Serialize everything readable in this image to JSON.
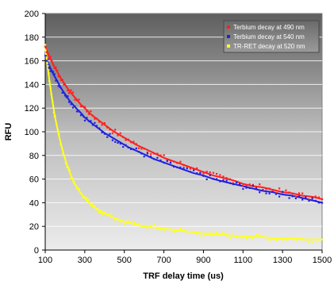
{
  "chart_data": {
    "type": "scatter",
    "title": "",
    "xlabel": "TRF delay time (us)",
    "ylabel": "RFU",
    "xlim": [
      100,
      1500
    ],
    "ylim": [
      0,
      200
    ],
    "xticks": [
      100,
      300,
      500,
      700,
      900,
      1100,
      1300,
      1500
    ],
    "yticks": [
      0,
      20,
      40,
      60,
      80,
      100,
      120,
      140,
      160,
      180,
      200
    ],
    "grid": "horizontal",
    "legend_position": "top-right",
    "background": "dark gray gradient",
    "series": [
      {
        "name": "Terbium decay at 490 nm",
        "color": "#ff2020",
        "trend": "exponential decay fit line",
        "points": [
          [
            100,
            172
          ],
          [
            110,
            168
          ],
          [
            120,
            164
          ],
          [
            140,
            157
          ],
          [
            160,
            151
          ],
          [
            180,
            145
          ],
          [
            200,
            140
          ],
          [
            220,
            135
          ],
          [
            250,
            129
          ],
          [
            280,
            123
          ],
          [
            300,
            120
          ],
          [
            330,
            115
          ],
          [
            360,
            111
          ],
          [
            400,
            106
          ],
          [
            440,
            101
          ],
          [
            480,
            97
          ],
          [
            520,
            93
          ],
          [
            560,
            89
          ],
          [
            600,
            86
          ],
          [
            650,
            82
          ],
          [
            700,
            78
          ],
          [
            750,
            75
          ],
          [
            800,
            72
          ],
          [
            850,
            69
          ],
          [
            900,
            66
          ],
          [
            950,
            63
          ],
          [
            1000,
            61
          ],
          [
            1050,
            59
          ],
          [
            1100,
            56
          ],
          [
            1150,
            54
          ],
          [
            1200,
            53
          ],
          [
            1250,
            51
          ],
          [
            1300,
            49
          ],
          [
            1350,
            48
          ],
          [
            1400,
            46
          ],
          [
            1450,
            45
          ],
          [
            1500,
            43
          ]
        ]
      },
      {
        "name": "Terbium decay at 540 nm",
        "color": "#2020e0",
        "trend": "exponential decay fit line",
        "points": [
          [
            100,
            164
          ],
          [
            110,
            160
          ],
          [
            120,
            156
          ],
          [
            140,
            149
          ],
          [
            160,
            143
          ],
          [
            180,
            137
          ],
          [
            200,
            132
          ],
          [
            220,
            127
          ],
          [
            250,
            121
          ],
          [
            280,
            116
          ],
          [
            300,
            112
          ],
          [
            330,
            108
          ],
          [
            360,
            104
          ],
          [
            400,
            99
          ],
          [
            440,
            95
          ],
          [
            480,
            91
          ],
          [
            520,
            87
          ],
          [
            560,
            84
          ],
          [
            600,
            81
          ],
          [
            650,
            77
          ],
          [
            700,
            74
          ],
          [
            750,
            71
          ],
          [
            800,
            68
          ],
          [
            850,
            65
          ],
          [
            900,
            63
          ],
          [
            950,
            60
          ],
          [
            1000,
            58
          ],
          [
            1050,
            56
          ],
          [
            1100,
            54
          ],
          [
            1150,
            52
          ],
          [
            1200,
            50
          ],
          [
            1250,
            49
          ],
          [
            1300,
            47
          ],
          [
            1350,
            46
          ],
          [
            1400,
            44
          ],
          [
            1450,
            42
          ],
          [
            1500,
            40
          ]
        ]
      },
      {
        "name": "TR-RET decay at 520 nm",
        "color": "#ffff20",
        "trend": "exponential decay fit line",
        "points": [
          [
            100,
            172
          ],
          [
            110,
            158
          ],
          [
            120,
            145
          ],
          [
            130,
            133
          ],
          [
            140,
            122
          ],
          [
            150,
            112
          ],
          [
            170,
            96
          ],
          [
            190,
            83
          ],
          [
            210,
            72
          ],
          [
            230,
            63
          ],
          [
            250,
            56
          ],
          [
            280,
            48
          ],
          [
            310,
            42
          ],
          [
            340,
            37
          ],
          [
            370,
            34
          ],
          [
            400,
            31
          ],
          [
            450,
            27
          ],
          [
            500,
            24
          ],
          [
            550,
            22
          ],
          [
            600,
            20
          ],
          [
            650,
            19
          ],
          [
            700,
            18
          ],
          [
            750,
            17
          ],
          [
            800,
            16
          ],
          [
            850,
            15
          ],
          [
            900,
            14
          ],
          [
            950,
            13
          ],
          [
            1000,
            13
          ],
          [
            1050,
            12
          ],
          [
            1100,
            12
          ],
          [
            1150,
            11
          ],
          [
            1200,
            11
          ],
          [
            1250,
            10
          ],
          [
            1300,
            10
          ],
          [
            1350,
            10
          ],
          [
            1400,
            9
          ],
          [
            1450,
            9
          ],
          [
            1500,
            9
          ]
        ]
      }
    ]
  }
}
